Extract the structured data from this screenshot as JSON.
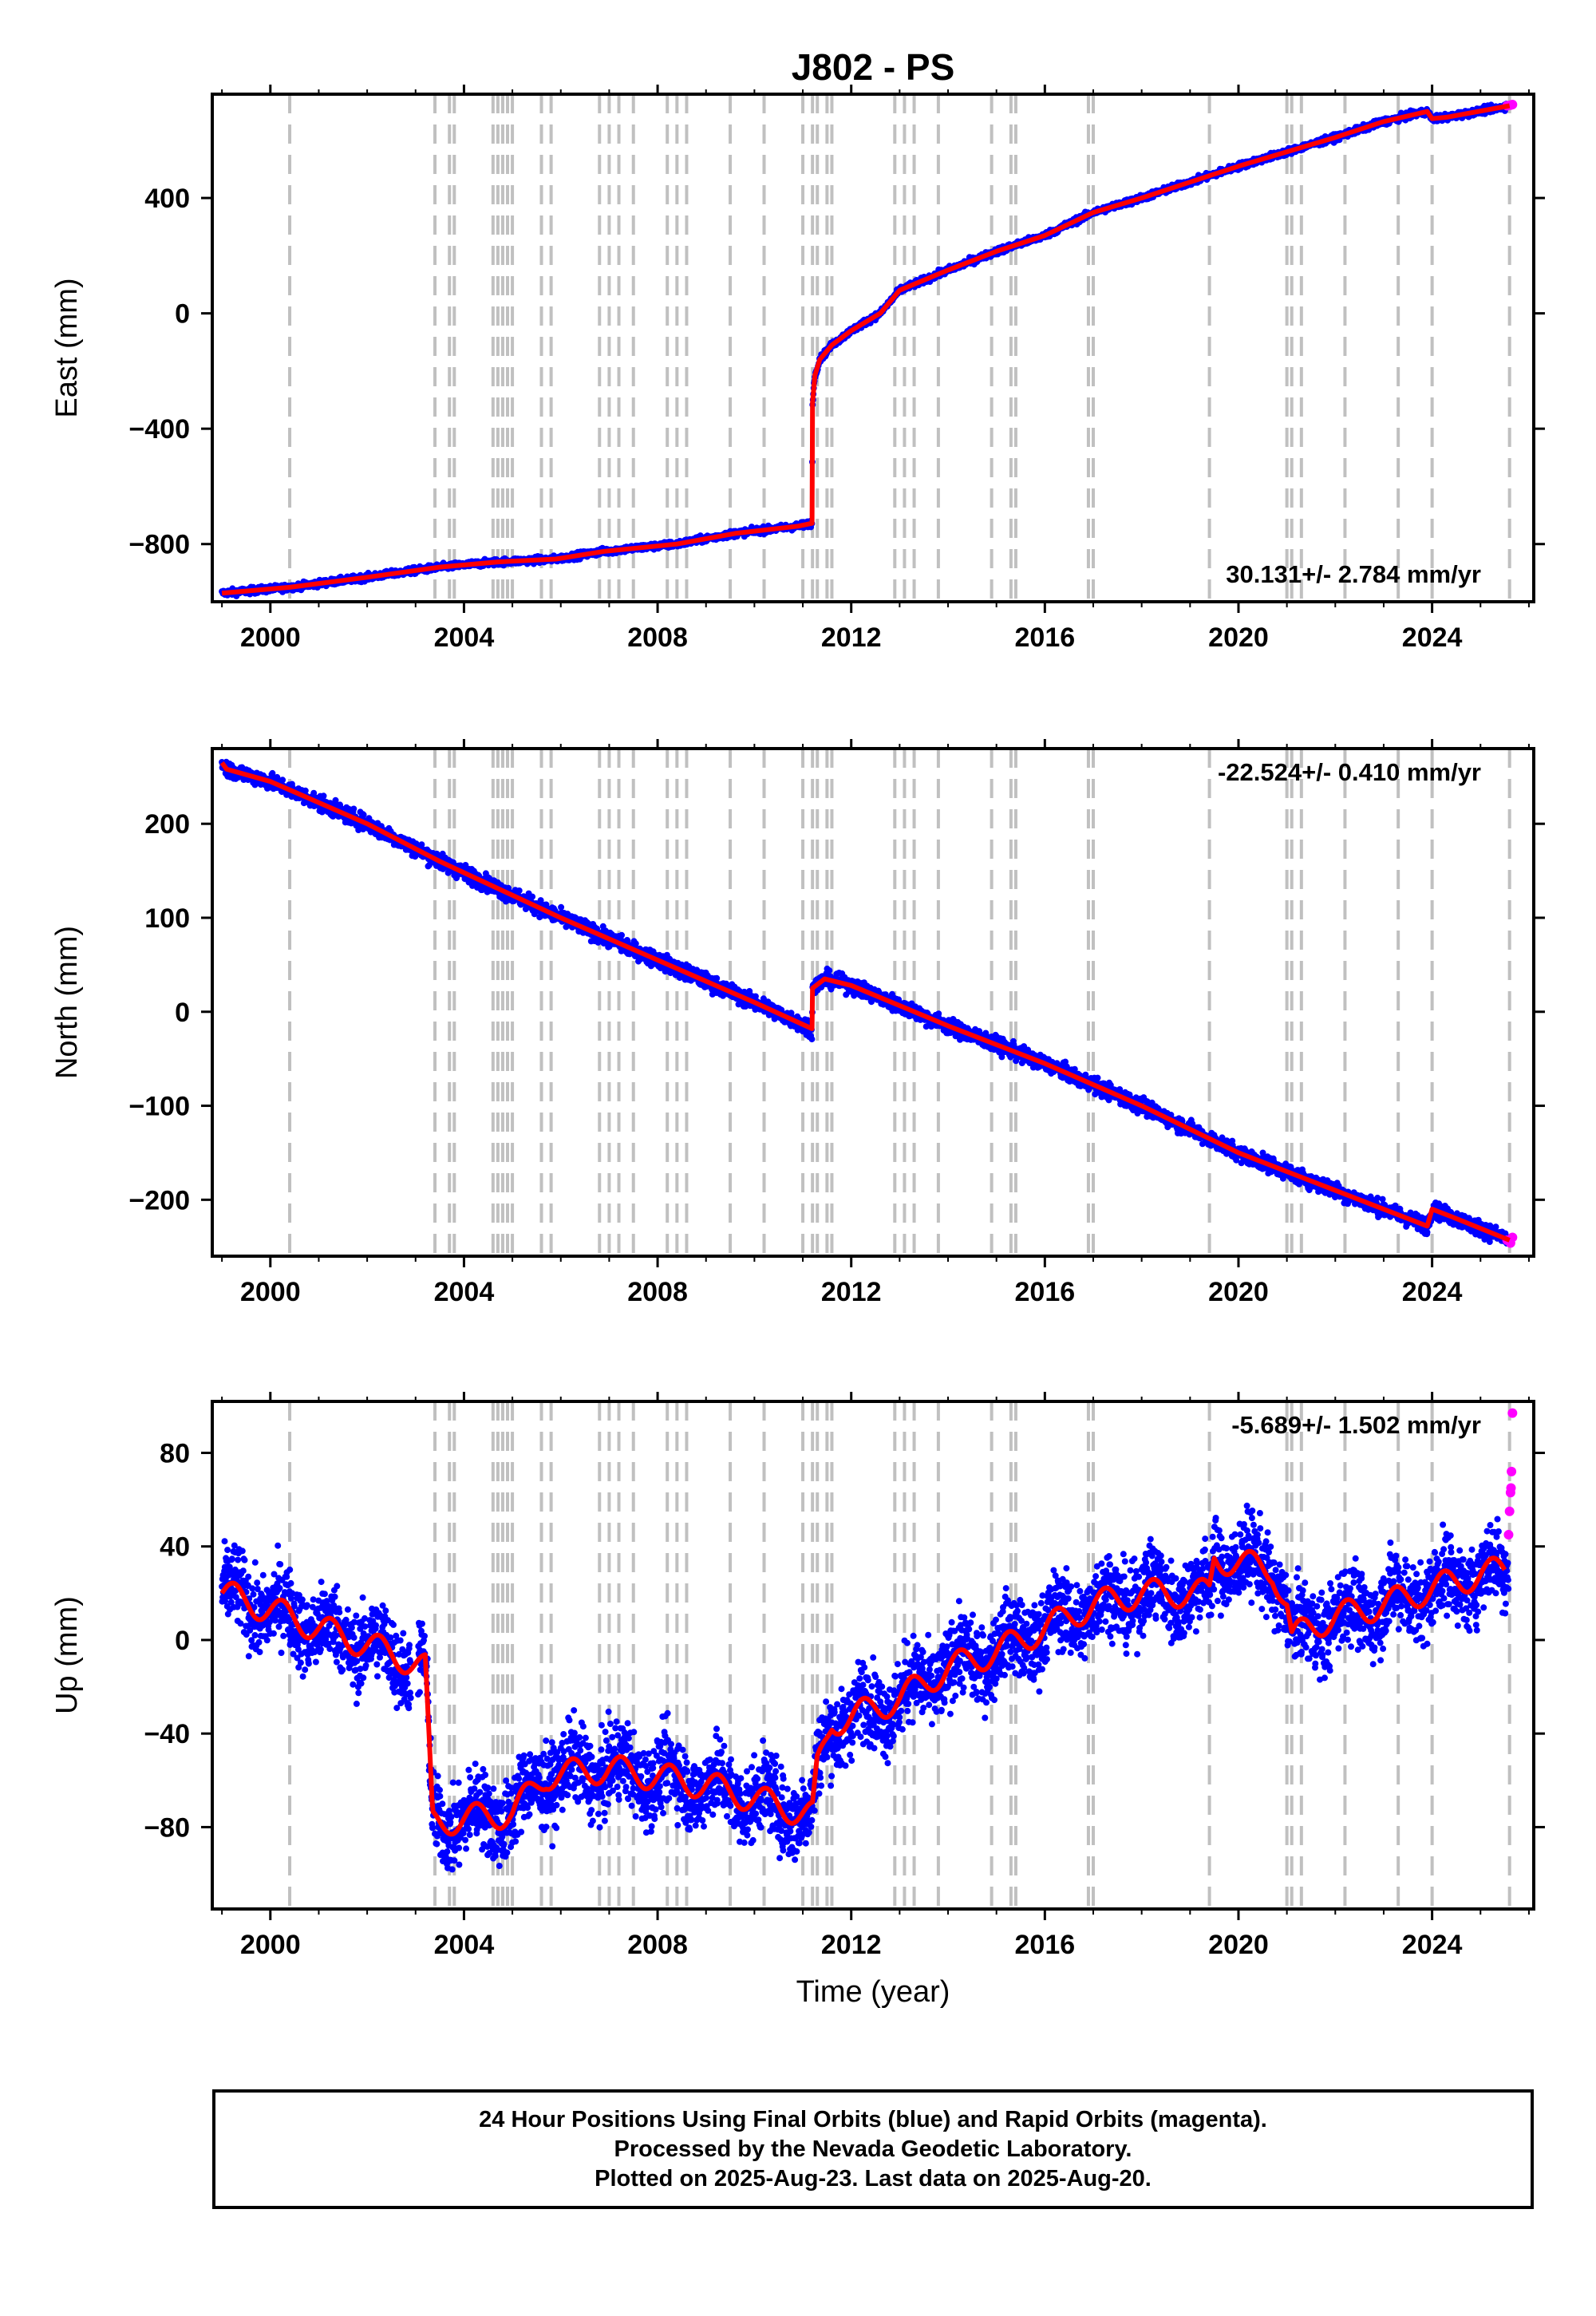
{
  "chart_data": [
    {
      "type": "scatter",
      "title": "J802 - PS",
      "ylabel": "East (mm)",
      "xlabel": "",
      "xlim": [
        1998.8,
        2026.1
      ],
      "ylim": [
        -1000,
        760
      ],
      "xticks": [
        2000,
        2004,
        2008,
        2012,
        2016,
        2020,
        2024
      ],
      "xtick_labels": [
        "2000",
        "2004",
        "2008",
        "2012",
        "2016",
        "2020",
        "2024"
      ],
      "yticks": [
        -800,
        -400,
        0,
        400
      ],
      "ytick_labels": [
        "−800",
        "−400",
        "0",
        "400"
      ],
      "rate_label": "30.131+/- 2.784 mm/yr",
      "final_orbit_trend": [
        [
          1999.0,
          -970
        ],
        [
          2000.4,
          -950
        ],
        [
          2002.0,
          -915
        ],
        [
          2003.5,
          -880
        ],
        [
          2004.7,
          -862
        ],
        [
          2005.9,
          -852
        ],
        [
          2006.9,
          -825
        ],
        [
          2008.4,
          -800
        ],
        [
          2009.6,
          -763
        ],
        [
          2010.9,
          -738
        ],
        [
          2011.19,
          -728
        ],
        [
          2011.2,
          -310
        ],
        [
          2011.25,
          -215
        ],
        [
          2011.35,
          -160
        ],
        [
          2011.6,
          -110
        ],
        [
          2012.0,
          -60
        ],
        [
          2012.6,
          0
        ],
        [
          2013.0,
          80
        ],
        [
          2014.0,
          150
        ],
        [
          2015.0,
          215
        ],
        [
          2016.0,
          270
        ],
        [
          2017.0,
          350
        ],
        [
          2018.0,
          400
        ],
        [
          2019.0,
          455
        ],
        [
          2020.0,
          510
        ],
        [
          2021.0,
          560
        ],
        [
          2022.0,
          610
        ],
        [
          2023.0,
          665
        ],
        [
          2023.9,
          700
        ],
        [
          2024.0,
          675
        ],
        [
          2024.3,
          680
        ],
        [
          2025.6,
          720
        ]
      ],
      "rapid_orbit_points": [
        [
          2025.55,
          720
        ],
        [
          2025.62,
          722
        ],
        [
          2025.66,
          724
        ]
      ],
      "noise_amplitude": 8
    },
    {
      "type": "scatter",
      "ylabel": "North (mm)",
      "xlabel": "",
      "xlim": [
        1998.8,
        2026.1
      ],
      "ylim": [
        -260,
        280
      ],
      "xticks": [
        2000,
        2004,
        2008,
        2012,
        2016,
        2020,
        2024
      ],
      "xtick_labels": [
        "2000",
        "2004",
        "2008",
        "2012",
        "2016",
        "2020",
        "2024"
      ],
      "yticks": [
        -200,
        -100,
        0,
        100,
        200
      ],
      "ytick_labels": [
        "−200",
        "−100",
        "0",
        "100",
        "200"
      ],
      "rate_label": "-22.524+/- 0.410 mm/yr",
      "final_orbit_trend": [
        [
          1999.0,
          265
        ],
        [
          1999.1,
          258
        ],
        [
          2000.0,
          245
        ],
        [
          2002.0,
          200
        ],
        [
          2003.5,
          160
        ],
        [
          2004.0,
          148
        ],
        [
          2006.0,
          100
        ],
        [
          2008.0,
          55
        ],
        [
          2010.0,
          10
        ],
        [
          2011.19,
          -18
        ],
        [
          2011.2,
          25
        ],
        [
          2011.45,
          35
        ],
        [
          2012.0,
          28
        ],
        [
          2014.0,
          -15
        ],
        [
          2016.0,
          -55
        ],
        [
          2018.0,
          -100
        ],
        [
          2020.0,
          -150
        ],
        [
          2022.0,
          -190
        ],
        [
          2023.9,
          -228
        ],
        [
          2024.0,
          -210
        ],
        [
          2024.4,
          -218
        ],
        [
          2025.6,
          -243
        ]
      ],
      "rapid_orbit_points": [
        [
          2025.55,
          -243
        ],
        [
          2025.62,
          -246
        ],
        [
          2025.66,
          -240
        ]
      ],
      "noise_amplitude": 6
    },
    {
      "type": "scatter",
      "ylabel": "Up (mm)",
      "xlabel": "Time (year)",
      "xlim": [
        1998.8,
        2026.1
      ],
      "ylim": [
        -115,
        102
      ],
      "xticks": [
        2000,
        2004,
        2008,
        2012,
        2016,
        2020,
        2024
      ],
      "xtick_labels": [
        "2000",
        "2004",
        "2008",
        "2012",
        "2016",
        "2020",
        "2024"
      ],
      "yticks": [
        -80,
        -40,
        0,
        40,
        80
      ],
      "ytick_labels": [
        "−80",
        "−40",
        "0",
        "40",
        "80"
      ],
      "rate_label": "-5.689+/- 1.502 mm/yr",
      "final_orbit_trend": [
        [
          1999.0,
          20
        ],
        [
          2000.0,
          13
        ],
        [
          2001.0,
          5
        ],
        [
          2002.0,
          -2
        ],
        [
          2003.0,
          -10
        ],
        [
          2003.2,
          -12
        ],
        [
          2003.35,
          -78
        ],
        [
          2005.0,
          -74
        ],
        [
          2005.7,
          -58
        ],
        [
          2007.0,
          -55
        ],
        [
          2009.0,
          -62
        ],
        [
          2011.2,
          -75
        ],
        [
          2011.3,
          -55
        ],
        [
          2011.6,
          -35
        ],
        [
          2012.0,
          -33
        ],
        [
          2013.0,
          -25
        ],
        [
          2014.0,
          -12
        ],
        [
          2015.0,
          -5
        ],
        [
          2016.0,
          5
        ],
        [
          2017.0,
          15
        ],
        [
          2018.0,
          20
        ],
        [
          2019.4,
          20
        ],
        [
          2019.5,
          35
        ],
        [
          2020.7,
          30
        ],
        [
          2021.0,
          15
        ],
        [
          2021.1,
          0
        ],
        [
          2021.4,
          5
        ],
        [
          2022.0,
          10
        ],
        [
          2023.0,
          15
        ],
        [
          2024.0,
          22
        ],
        [
          2025.0,
          28
        ],
        [
          2025.5,
          30
        ]
      ],
      "seasonal_amplitude": 6,
      "rapid_orbit_points": [
        [
          2025.58,
          45
        ],
        [
          2025.6,
          55
        ],
        [
          2025.62,
          63
        ],
        [
          2025.63,
          65
        ],
        [
          2025.64,
          72
        ],
        [
          2025.66,
          97
        ]
      ],
      "noise_amplitude": 12
    }
  ],
  "equipment_change_years": [
    2000.4,
    2003.4,
    2003.7,
    2003.8,
    2004.6,
    2004.7,
    2004.8,
    2004.9,
    2005.0,
    2005.6,
    2005.8,
    2006.8,
    2007.0,
    2007.2,
    2007.5,
    2008.2,
    2008.4,
    2008.6,
    2009.5,
    2010.2,
    2011.0,
    2011.2,
    2011.3,
    2011.5,
    2011.6,
    2012.9,
    2013.1,
    2013.3,
    2013.8,
    2014.9,
    2015.3,
    2015.4,
    2016.9,
    2017.0,
    2019.4,
    2021.0,
    2021.1,
    2021.3,
    2022.2,
    2023.3,
    2024.0,
    2025.6
  ],
  "colors": {
    "final_orbit": "#0000ff",
    "rapid_orbit": "#ff00ff",
    "trend_line": "#ff0000",
    "event_lines": "#c0c0c0",
    "frame": "#000000"
  },
  "footer": {
    "line1": "24 Hour Positions Using Final Orbits (blue) and Rapid Orbits (magenta).",
    "line2": "Processed by the Nevada Geodetic Laboratory.",
    "line3": "Plotted on 2025-Aug-23. Last data on 2025-Aug-20."
  }
}
